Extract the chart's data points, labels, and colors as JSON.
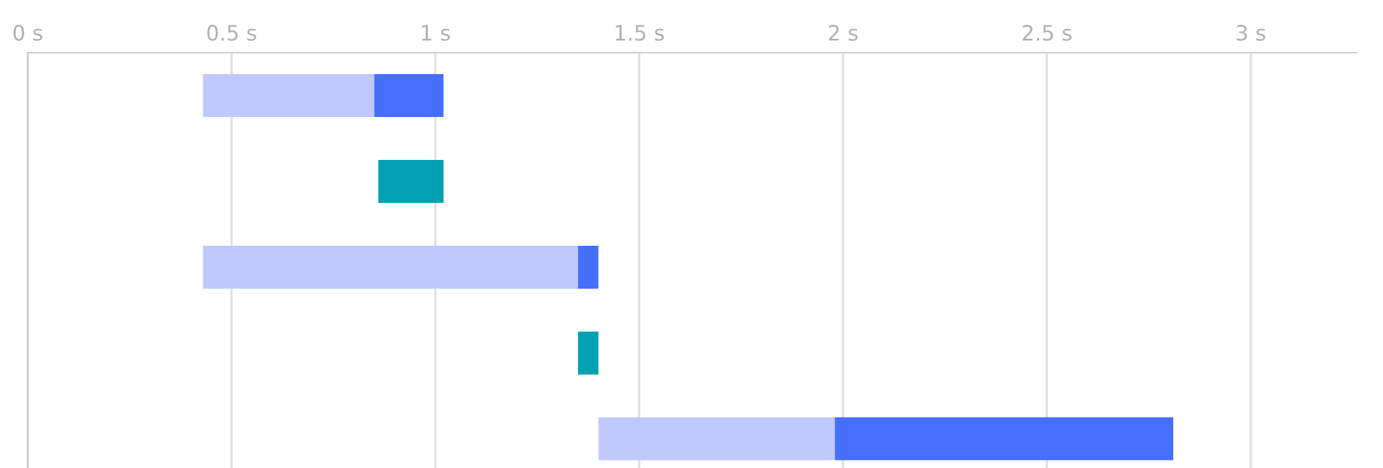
{
  "chart_data": {
    "type": "bar",
    "orientation": "horizontal",
    "categories": [
      null,
      null,
      null,
      null,
      null
    ],
    "series": [
      {
        "color": "#bfc9fe",
        "base": [
          0.43,
          null,
          0.43,
          null,
          1.4
        ],
        "values": [
          0.42,
          null,
          0.92,
          null,
          0.58
        ]
      },
      {
        "color": "#476ffe",
        "base": [
          0.85,
          null,
          1.35,
          null,
          1.98
        ],
        "values": [
          0.17,
          null,
          0.05,
          null,
          0.83
        ]
      },
      {
        "color": "#00a1b1",
        "base": [
          null,
          0.86,
          null,
          1.35,
          null
        ],
        "values": [
          null,
          0.16,
          null,
          0.05,
          null
        ]
      }
    ],
    "xlim": [
      0,
      3.26
    ],
    "xticks": [
      {
        "value": 0,
        "label": "0 s"
      },
      {
        "value": 0.5,
        "label": "0.5 s"
      },
      {
        "value": 1,
        "label": "1 s"
      },
      {
        "value": 1.5,
        "label": "1.5 s"
      },
      {
        "value": 2,
        "label": "2 s"
      },
      {
        "value": 2.5,
        "label": "2.5 s"
      },
      {
        "value": 3,
        "label": "3 s"
      }
    ],
    "grid": "x",
    "tick_labels": "x"
  }
}
